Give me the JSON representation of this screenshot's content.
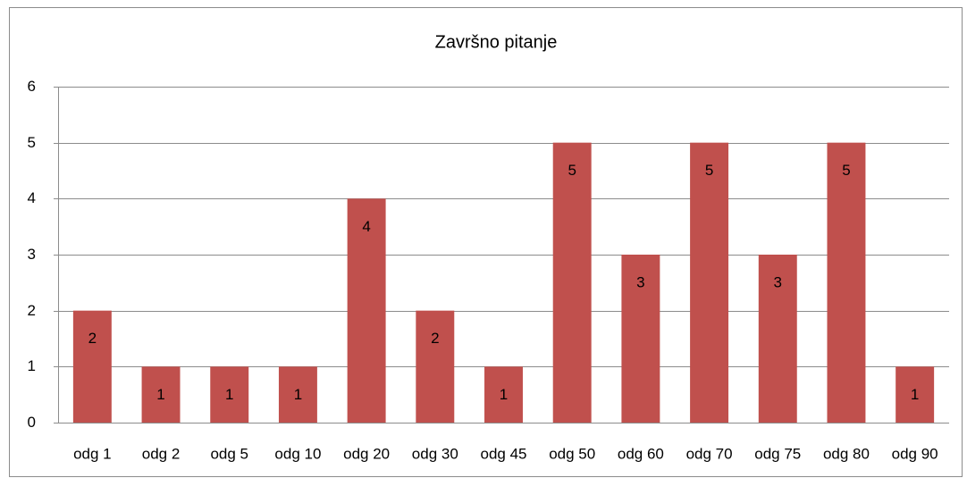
{
  "chart_data": {
    "type": "bar",
    "title": "Završno pitanje",
    "categories": [
      "odg 1",
      "odg 2",
      "odg 5",
      "odg 10",
      "odg 20",
      "odg 30",
      "odg 45",
      "odg 50",
      "odg 60",
      "odg 70",
      "odg 75",
      "odg 80",
      "odg 90"
    ],
    "values": [
      2,
      1,
      1,
      1,
      4,
      2,
      1,
      5,
      3,
      5,
      3,
      5,
      1
    ],
    "color": "#c0504d",
    "ylim": [
      0,
      6
    ],
    "yticks": [
      0,
      1,
      2,
      3,
      4,
      5,
      6
    ],
    "grid": true
  }
}
